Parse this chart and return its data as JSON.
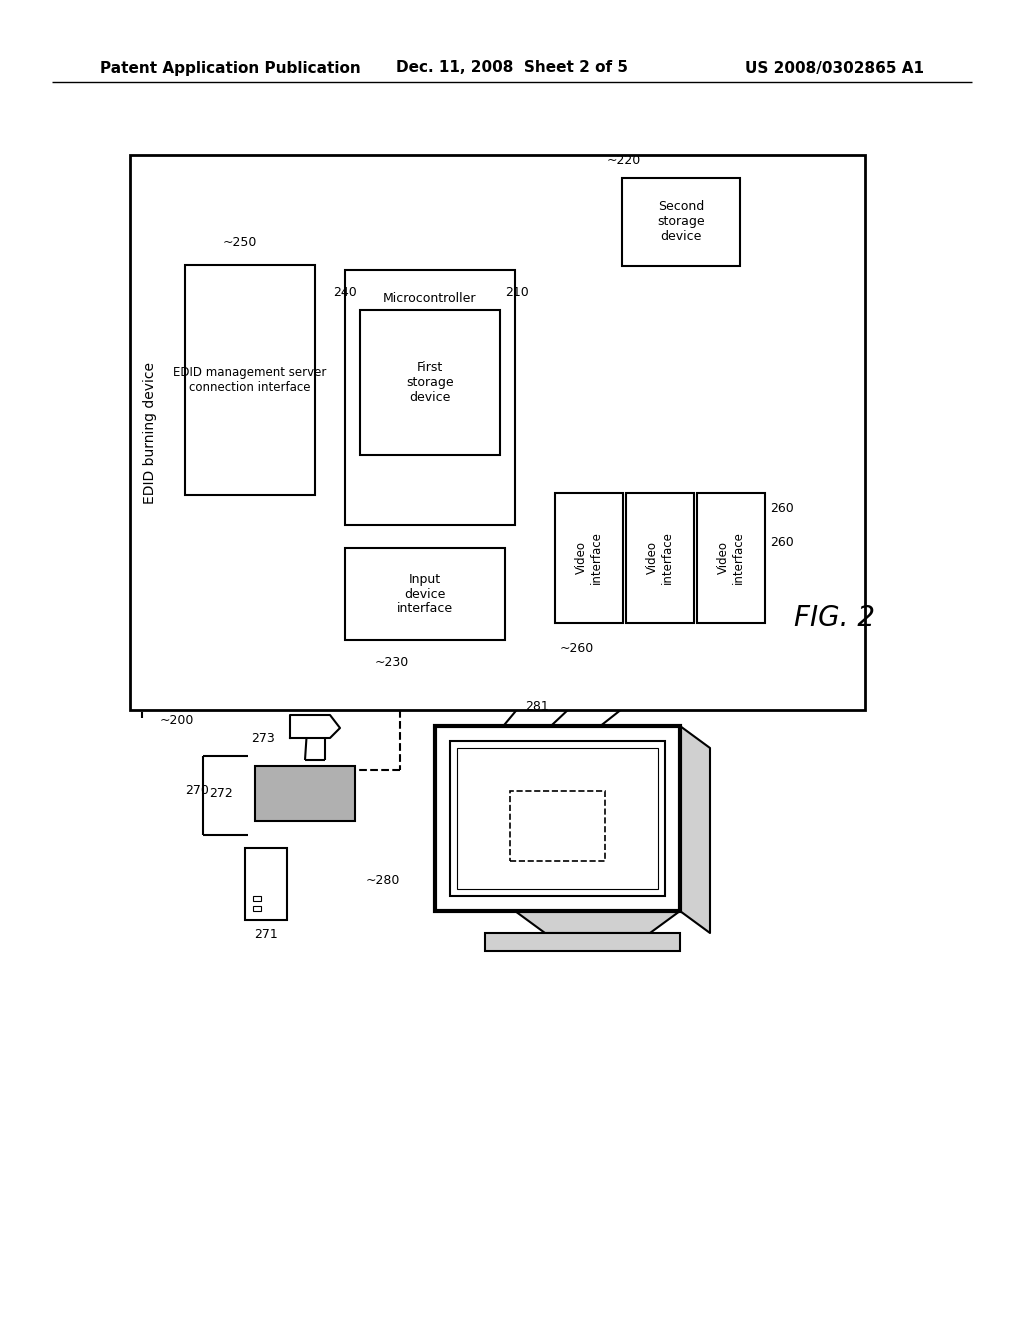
{
  "title_left": "Patent Application Publication",
  "title_mid": "Dec. 11, 2008  Sheet 2 of 5",
  "title_right": "US 2008/0302865 A1",
  "fig_label": "FIG. 2",
  "bg_color": "#ffffff",
  "lc": "#000000",
  "tc": "#000000"
}
